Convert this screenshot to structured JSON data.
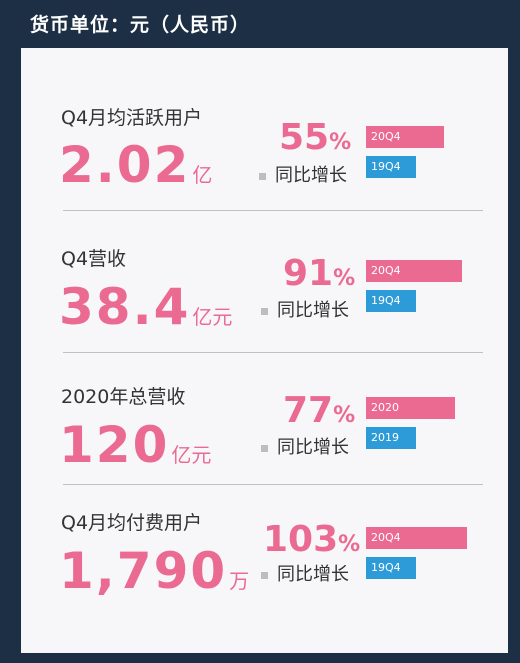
{
  "header": {
    "title": "货币单位：元（人民币）"
  },
  "chart_data": {
    "type": "bar",
    "title": "",
    "metrics": [
      {
        "label": "Q4月均活跃用户",
        "value": "2.02",
        "unit": "亿",
        "growth": "55",
        "growth_unit": "%",
        "growth_label": "同比增长",
        "bar_current_label": "20Q4",
        "bar_previous_label": "19Q4",
        "bar_ratio": 1.55
      },
      {
        "label": "Q4营收",
        "value": "38.4",
        "unit": "亿元",
        "growth": "91",
        "growth_unit": "%",
        "growth_label": "同比增长",
        "bar_current_label": "20Q4",
        "bar_previous_label": "19Q4",
        "bar_ratio": 1.91
      },
      {
        "label": "2020年总营收",
        "value": "120",
        "unit": "亿元",
        "growth": "77",
        "growth_unit": "%",
        "growth_label": "同比增长",
        "bar_current_label": "2020",
        "bar_previous_label": "2019",
        "bar_ratio": 1.77
      },
      {
        "label": "Q4月均付费用户",
        "value": "1,790",
        "unit": "万",
        "growth": "103",
        "growth_unit": "%",
        "growth_label": "同比增长",
        "bar_current_label": "20Q4",
        "bar_previous_label": "19Q4",
        "bar_ratio": 2.03
      }
    ]
  },
  "colors": {
    "accent": "#ea6a92",
    "previous": "#2d9bd8",
    "background": "#1d2f45"
  }
}
